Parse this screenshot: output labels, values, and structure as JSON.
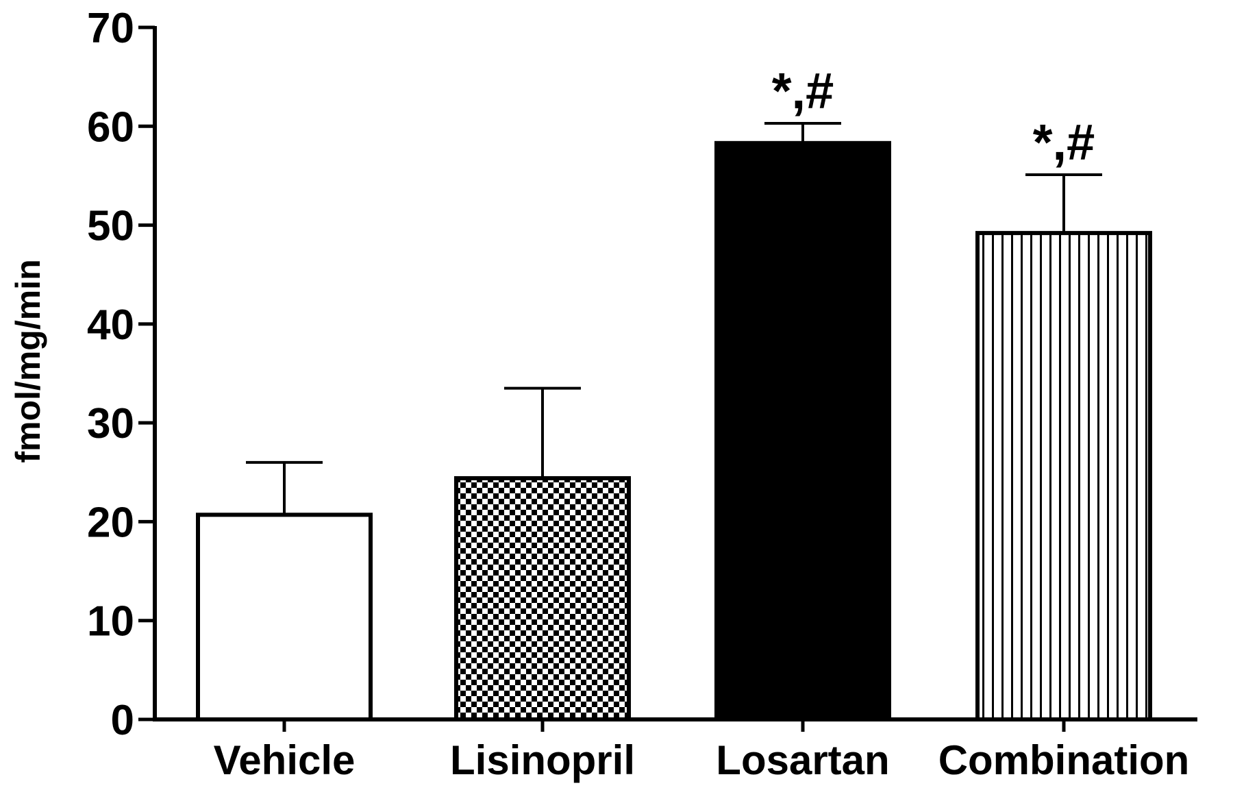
{
  "chart_data": {
    "type": "bar",
    "title": "",
    "xlabel": "",
    "ylabel": "fmol/mg/min",
    "ylim": [
      0,
      70
    ],
    "yticks": [
      0,
      10,
      20,
      30,
      40,
      50,
      60,
      70
    ],
    "grid": false,
    "legend": "none",
    "categories": [
      "Vehicle",
      "Lisinopril",
      "Losartan",
      "Combination"
    ],
    "values": [
      20.7,
      24.4,
      58.3,
      49.2
    ],
    "errors": [
      5.3,
      9.1,
      2.0,
      5.9
    ],
    "fills": [
      "white",
      "checkerboard",
      "solid-black",
      "vertical-stripes"
    ],
    "annotations": [
      "",
      "",
      "*,#",
      "*,#"
    ],
    "colors": {
      "stroke": "#000000",
      "fill_dark": "#000000",
      "fill_light": "#ffffff"
    }
  }
}
